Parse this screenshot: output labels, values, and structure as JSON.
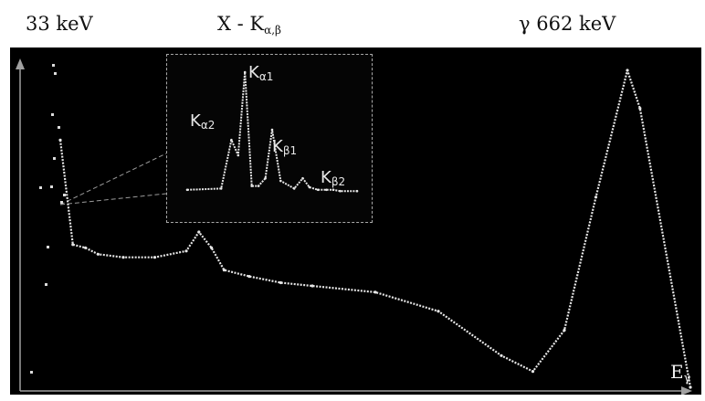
{
  "labels": {
    "left_main": "33 keV",
    "center_main": "X - K",
    "center_sub": "α,β",
    "right_main": "γ  662 keV",
    "axis_main": "E",
    "axis_sub": "γ"
  },
  "inset": {
    "labels": [
      {
        "id": "ka1",
        "main": "K",
        "sub": "α1"
      },
      {
        "id": "ka2",
        "main": "K",
        "sub": "α2"
      },
      {
        "id": "kb1",
        "main": "K",
        "sub": "β1"
      },
      {
        "id": "kb2",
        "main": "K",
        "sub": "β2"
      }
    ]
  },
  "colors": {
    "background": "#000000",
    "curve": "#e6e6e6",
    "axes": "#a0a0a0",
    "page": "#ffffff"
  },
  "chart_data": {
    "type": "line",
    "title": "",
    "xlabel": "Eγ",
    "ylabel": "",
    "grid": false,
    "annotations": [
      "33 keV",
      "X - Kα,β",
      "γ  662 keV"
    ],
    "spectrum": {
      "name": "",
      "x": [
        0,
        2,
        4,
        6,
        10,
        15,
        20,
        22,
        24,
        26,
        30,
        35,
        40,
        50,
        60,
        70,
        75,
        80,
        85,
        90,
        92,
        100
      ],
      "y": [
        78,
        45,
        44,
        42,
        41,
        41,
        43,
        49,
        44,
        37,
        35,
        33,
        32,
        30,
        24,
        10,
        5,
        18,
        60,
        100,
        88,
        0
      ]
    },
    "inset": {
      "type": "line",
      "x": [
        0,
        20,
        26,
        30,
        34,
        38,
        42,
        46,
        50,
        55,
        63,
        68,
        72,
        77,
        82,
        86,
        90,
        100
      ],
      "y": [
        3,
        4,
        42,
        30,
        95,
        6,
        6,
        12,
        50,
        10,
        4,
        12,
        5,
        3,
        3,
        3,
        2,
        2
      ]
    }
  }
}
